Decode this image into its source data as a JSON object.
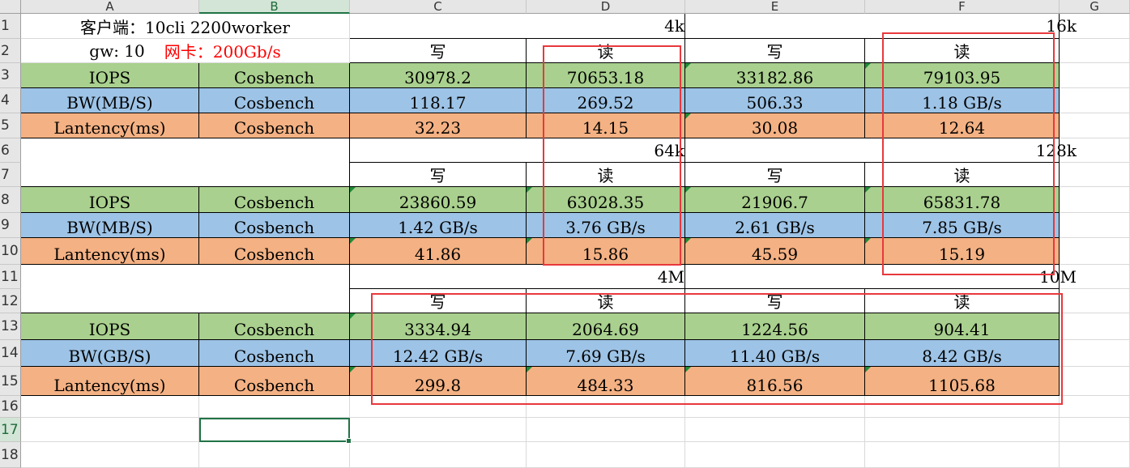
{
  "columns": [
    "A",
    "B",
    "C",
    "D",
    "E",
    "F",
    "G"
  ],
  "rows": [
    "1",
    "2",
    "3",
    "4",
    "5",
    "6",
    "7",
    "8",
    "9",
    "10",
    "11",
    "12",
    "13",
    "14",
    "15",
    "16",
    "17",
    "18"
  ],
  "selected_column": "B",
  "selected_row": "17",
  "header": {
    "client_label": "客户端：10cli 2200worker",
    "gw_label": "gw: 10",
    "nic_label": "网卡：200Gb/s"
  },
  "sections": [
    {
      "sizes": [
        "4k",
        "16k"
      ],
      "ops": [
        "写",
        "读",
        "写",
        "读"
      ],
      "metrics": [
        {
          "name": "IOPS",
          "tool": "Cosbench",
          "values": [
            "30978.2",
            "70653.18",
            "33182.86",
            "79103.95"
          ]
        },
        {
          "name": "BW(MB/S)",
          "tool": "Cosbench",
          "values": [
            "118.17",
            "269.52",
            "506.33",
            "1.18 GB/s"
          ]
        },
        {
          "name": "Lantency(ms)",
          "tool": "Cosbench",
          "values": [
            "32.23",
            "14.15",
            "30.08",
            "12.64"
          ]
        }
      ]
    },
    {
      "sizes": [
        "64k",
        "128k"
      ],
      "ops": [
        "写",
        "读",
        "写",
        "读"
      ],
      "metrics": [
        {
          "name": "IOPS",
          "tool": "Cosbench",
          "values": [
            "23860.59",
            "63028.35",
            "21906.7",
            "65831.78"
          ]
        },
        {
          "name": "BW(MB/S)",
          "tool": "Cosbench",
          "values": [
            "1.42 GB/s",
            "3.76 GB/s",
            "2.61 GB/s",
            "7.85 GB/s"
          ]
        },
        {
          "name": "Lantency(ms)",
          "tool": "Cosbench",
          "values": [
            "41.86",
            "15.86",
            "45.59",
            "15.19"
          ]
        }
      ]
    },
    {
      "sizes": [
        "4M",
        "10M"
      ],
      "ops": [
        "写",
        "读",
        "写",
        "读"
      ],
      "metrics": [
        {
          "name": "IOPS",
          "tool": "Cosbench",
          "values": [
            "3334.94",
            "2064.69",
            "1224.56",
            "904.41"
          ]
        },
        {
          "name": "BW(GB/S)",
          "tool": "Cosbench",
          "values": [
            "12.42 GB/s",
            "7.69 GB/s",
            "11.40 GB/s",
            "8.42 GB/s"
          ]
        },
        {
          "name": "Lantency(ms)",
          "tool": "Cosbench",
          "values": [
            "299.8",
            "484.33",
            "816.56",
            "1105.68"
          ]
        }
      ]
    }
  ],
  "colors": {
    "iops_fill": "#a9d08e",
    "bw_fill": "#9dc3e6",
    "latency_fill": "#f4b183",
    "highlight_box": "#e8383d",
    "nic_text": "#ff0000",
    "selection": "#217346"
  }
}
